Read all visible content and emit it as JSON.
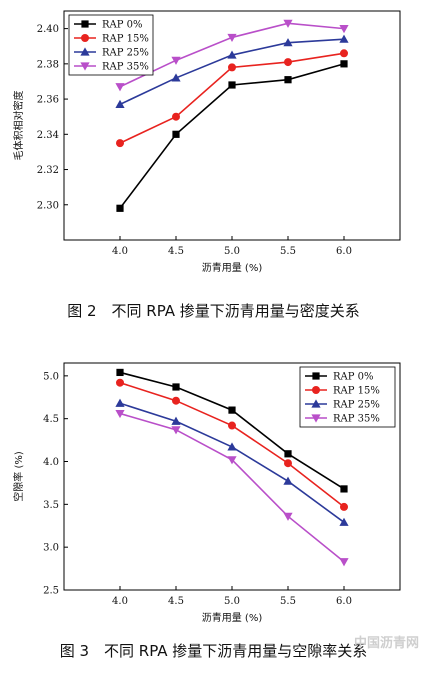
{
  "chart_data": [
    {
      "type": "line",
      "caption": "图 2　不同 RPA 掺量下沥青用量与密度关系",
      "xlabel": "沥青用量 (%)",
      "ylabel": "毛体积相对密度",
      "x": [
        4.0,
        4.5,
        5.0,
        5.5,
        6.0
      ],
      "xlim": [
        3.5,
        6.5
      ],
      "ylim": [
        2.28,
        2.41
      ],
      "yticks": [
        2.3,
        2.32,
        2.34,
        2.36,
        2.38,
        2.4
      ],
      "xticks": [
        4.0,
        4.5,
        5.0,
        5.5,
        6.0
      ],
      "legend_position": "top-left",
      "series": [
        {
          "name": "RAP 0%",
          "color": "#000000",
          "marker": "square",
          "values": [
            2.298,
            2.34,
            2.368,
            2.371,
            2.38
          ]
        },
        {
          "name": "RAP 15%",
          "color": "#e8231f",
          "marker": "circle",
          "values": [
            2.335,
            2.35,
            2.378,
            2.381,
            2.386
          ]
        },
        {
          "name": "RAP 25%",
          "color": "#2c3a9a",
          "marker": "triangle-up",
          "values": [
            2.357,
            2.372,
            2.385,
            2.392,
            2.394
          ]
        },
        {
          "name": "RAP 35%",
          "color": "#b94fc9",
          "marker": "triangle-down",
          "values": [
            2.367,
            2.382,
            2.395,
            2.403,
            2.4
          ]
        }
      ]
    },
    {
      "type": "line",
      "caption": "图 3　不同 RPA 掺量下沥青用量与空隙率关系",
      "xlabel": "沥青用量 (%)",
      "ylabel": "空隙率 (%)",
      "x": [
        4.0,
        4.5,
        5.0,
        5.5,
        6.0
      ],
      "xlim": [
        3.5,
        6.5
      ],
      "ylim": [
        2.5,
        5.15
      ],
      "yticks": [
        2.5,
        3.0,
        3.5,
        4.0,
        4.5,
        5.0
      ],
      "xticks": [
        4.0,
        4.5,
        5.0,
        5.5,
        6.0
      ],
      "legend_position": "top-right",
      "series": [
        {
          "name": "RAP 0%",
          "color": "#000000",
          "marker": "square",
          "values": [
            5.04,
            4.87,
            4.6,
            4.09,
            3.68
          ]
        },
        {
          "name": "RAP 15%",
          "color": "#e8231f",
          "marker": "circle",
          "values": [
            4.92,
            4.71,
            4.42,
            3.98,
            3.47
          ]
        },
        {
          "name": "RAP 25%",
          "color": "#2c3a9a",
          "marker": "triangle-up",
          "values": [
            4.68,
            4.47,
            4.17,
            3.77,
            3.29
          ]
        },
        {
          "name": "RAP 35%",
          "color": "#b94fc9",
          "marker": "triangle-down",
          "values": [
            4.56,
            4.37,
            4.02,
            3.36,
            2.83
          ]
        }
      ]
    }
  ],
  "watermark": "中国沥青网"
}
